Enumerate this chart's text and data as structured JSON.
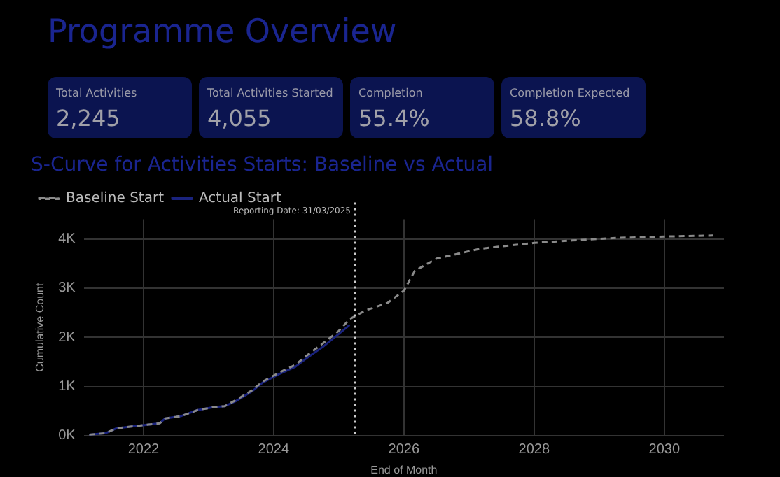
{
  "chart_data": [
    {
      "type": "other",
      "title": "Programme Overview",
      "annotations": [
        "Total Activities",
        "2,245",
        "Total Activities Started",
        "4,055",
        "Completion",
        "55.4%",
        "Completion Expected",
        "58.8%"
      ]
    },
    {
      "type": "line",
      "title": "S-Curve for Activities Starts: Baseline vs Actual",
      "xlabel": "End of Month",
      "ylabel": "Cumulative Count",
      "legend": "top left",
      "grid": true,
      "xlim": [
        "2021-02",
        "2030-12"
      ],
      "xticks": [
        "2022",
        "2024",
        "2026",
        "2028",
        "2030"
      ],
      "ylim": [
        0,
        4400
      ],
      "yticks": [
        {
          "value": 0,
          "label": "0K"
        },
        {
          "value": 1000,
          "label": "1K"
        },
        {
          "value": 2000,
          "label": "2K"
        },
        {
          "value": 3000,
          "label": "3K"
        },
        {
          "value": 4000,
          "label": "4K"
        }
      ],
      "marker": "none",
      "ref_lines": [
        {
          "axis": "x",
          "value": "2025-03-31",
          "label": "Reporting Date: 31/03/2025",
          "color": "#cccccc",
          "line_style": "dotted"
        }
      ],
      "series": [
        {
          "name": "Baseline Start",
          "color": "#8a8a8a",
          "line_style": "dashed",
          "x": [
            "2021-03",
            "2021-06",
            "2021-08",
            "2021-12",
            "2022-04",
            "2022-05",
            "2022-07",
            "2022-08",
            "2022-11",
            "2023-02",
            "2023-04",
            "2023-06",
            "2023-09",
            "2023-11",
            "2024-02",
            "2024-05",
            "2024-07",
            "2024-10",
            "2025-01",
            "2025-03",
            "2025-06",
            "2025-10",
            "2026-01",
            "2026-03",
            "2026-07",
            "2026-11",
            "2027-03",
            "2027-07",
            "2028-01",
            "2028-08",
            "2029-04",
            "2030-01",
            "2030-10"
          ],
          "values": [
            20,
            50,
            150,
            200,
            250,
            350,
            380,
            400,
            520,
            580,
            600,
            720,
            920,
            1100,
            1280,
            1440,
            1620,
            1870,
            2130,
            2370,
            2550,
            2700,
            2950,
            3350,
            3600,
            3700,
            3800,
            3850,
            3920,
            3970,
            4020,
            4050,
            4070
          ]
        },
        {
          "name": "Actual Start",
          "color": "#1a237e",
          "line_style": "solid",
          "x": [
            "2021-03",
            "2021-06",
            "2021-08",
            "2021-12",
            "2022-04",
            "2022-05",
            "2022-07",
            "2022-08",
            "2022-11",
            "2023-02",
            "2023-04",
            "2023-06",
            "2023-09",
            "2023-11",
            "2024-02",
            "2024-05",
            "2024-07",
            "2024-10",
            "2025-01",
            "2025-03"
          ],
          "values": [
            20,
            50,
            150,
            200,
            250,
            350,
            380,
            400,
            520,
            580,
            600,
            700,
            900,
            1080,
            1250,
            1400,
            1570,
            1800,
            2070,
            2250
          ]
        }
      ]
    }
  ]
}
